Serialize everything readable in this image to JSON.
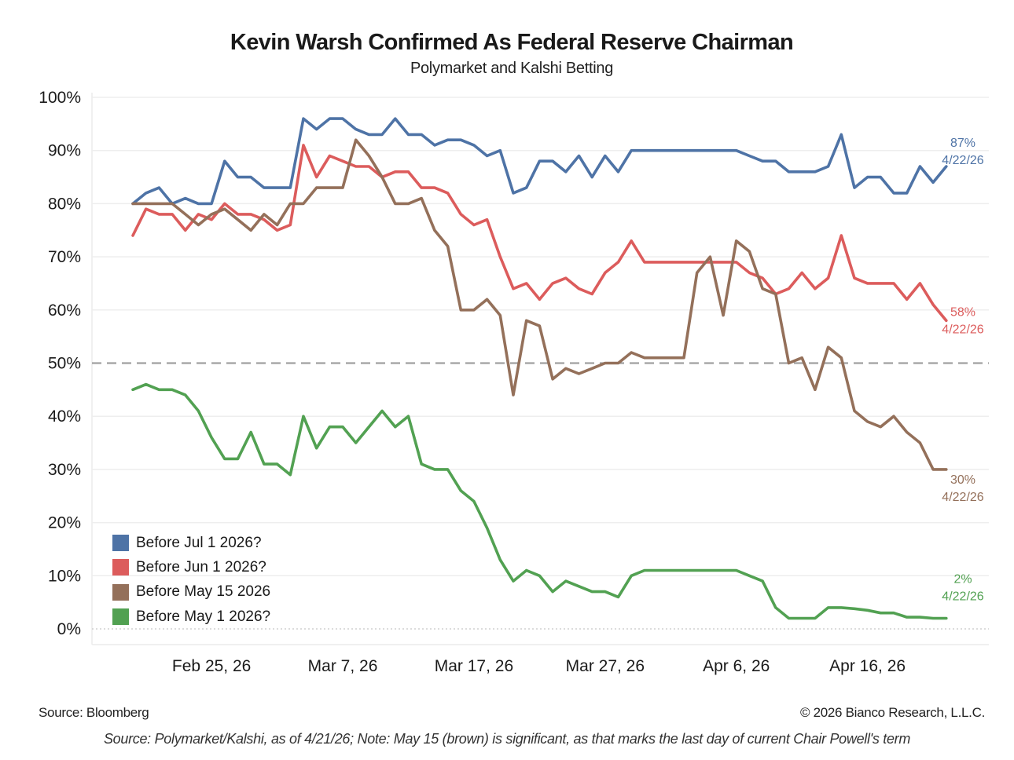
{
  "header": {
    "title": "Kevin Warsh Confirmed As Federal Reserve Chairman",
    "subtitle": "Polymarket and Kalshi Betting"
  },
  "footer": {
    "source_left": "Source: Bloomberg",
    "copyright": "© 2026 Bianco Research, L.L.C.",
    "note": "Source: Polymarket/Kalshi, as of 4/21/26; Note: May 15 (brown) is significant, as that marks the last day of current Chair Powell's term"
  },
  "chart_data": {
    "type": "line",
    "title": "Kevin Warsh Confirmed As Federal Reserve Chairman",
    "subtitle": "Polymarket and Kalshi Betting",
    "xlabel": "",
    "ylabel": "",
    "x_start": "2026-02-19",
    "x_end": "2026-04-22",
    "x_step": "1 day",
    "x_ticks": [
      "Feb 25, 26",
      "Mar 7, 26",
      "Mar 17, 26",
      "Mar 27, 26",
      "Apr 6, 26",
      "Apr 16, 26"
    ],
    "x_tick_index": [
      6,
      16,
      26,
      36,
      46,
      56
    ],
    "y_ticks": [
      "0%",
      "10%",
      "20%",
      "30%",
      "40%",
      "50%",
      "60%",
      "70%",
      "80%",
      "90%",
      "100%"
    ],
    "ylim": [
      0,
      100
    ],
    "grid": true,
    "reference_line": {
      "value": 50,
      "style": "dashed",
      "color": "#a0a0a0"
    },
    "legend_position": "bottom-left",
    "series": [
      {
        "name": "Before Jul 1 2026?",
        "color": "#4e73a6",
        "end_label": "87%",
        "end_date": "4/22/26",
        "values": [
          80,
          82,
          83,
          80,
          81,
          80,
          80,
          88,
          85,
          85,
          83,
          83,
          83,
          96,
          94,
          96,
          96,
          94,
          93,
          93,
          96,
          93,
          93,
          91,
          92,
          92,
          91,
          89,
          90,
          82,
          83,
          88,
          88,
          86,
          89,
          85,
          89,
          86,
          90,
          90,
          90,
          90,
          90,
          90,
          90,
          90,
          90,
          89,
          88,
          88,
          86,
          86,
          86,
          87,
          93,
          83,
          85,
          85,
          82,
          82,
          87,
          84,
          87
        ]
      },
      {
        "name": "Before Jun 1 2026?",
        "color": "#dc5c5c",
        "end_label": "58%",
        "end_date": "4/22/26",
        "values": [
          74,
          79,
          78,
          78,
          75,
          78,
          77,
          80,
          78,
          78,
          77,
          75,
          76,
          91,
          85,
          89,
          88,
          87,
          87,
          85,
          86,
          86,
          83,
          83,
          82,
          78,
          76,
          77,
          70,
          64,
          65,
          62,
          65,
          66,
          64,
          63,
          67,
          69,
          73,
          69,
          69,
          69,
          69,
          69,
          69,
          69,
          69,
          67,
          66,
          63,
          64,
          67,
          64,
          66,
          74,
          66,
          65,
          65,
          65,
          62,
          65,
          61,
          58
        ]
      },
      {
        "name": "Before May 15 2026",
        "color": "#94705a",
        "end_label": "30%",
        "end_date": "4/22/26",
        "values": [
          80,
          80,
          80,
          80,
          78,
          76,
          78,
          79,
          77,
          75,
          78,
          76,
          80,
          80,
          83,
          83,
          83,
          92,
          89,
          85,
          80,
          80,
          81,
          75,
          72,
          60,
          60,
          62,
          59,
          44,
          58,
          57,
          47,
          49,
          48,
          49,
          50,
          50,
          52,
          51,
          51,
          51,
          51,
          67,
          70,
          59,
          73,
          71,
          64,
          63,
          50,
          51,
          45,
          53,
          51,
          41,
          39,
          38,
          40,
          37,
          35,
          30,
          30
        ]
      },
      {
        "name": "Before May 1 2026?",
        "color": "#52a152",
        "end_label": "2%",
        "end_date": "4/22/26",
        "values": [
          45,
          46,
          45,
          45,
          44,
          41,
          36,
          32,
          32,
          37,
          31,
          31,
          29,
          40,
          34,
          38,
          38,
          35,
          38,
          41,
          38,
          40,
          31,
          30,
          30,
          26,
          24,
          19,
          13,
          9,
          11,
          10,
          7,
          9,
          8,
          7,
          7,
          6,
          10,
          11,
          11,
          11,
          11,
          11,
          11,
          11,
          11,
          10,
          9,
          4,
          2,
          2,
          2,
          4,
          4,
          3.8,
          3.5,
          3,
          3,
          2.2,
          2.2,
          2,
          2
        ]
      }
    ]
  }
}
